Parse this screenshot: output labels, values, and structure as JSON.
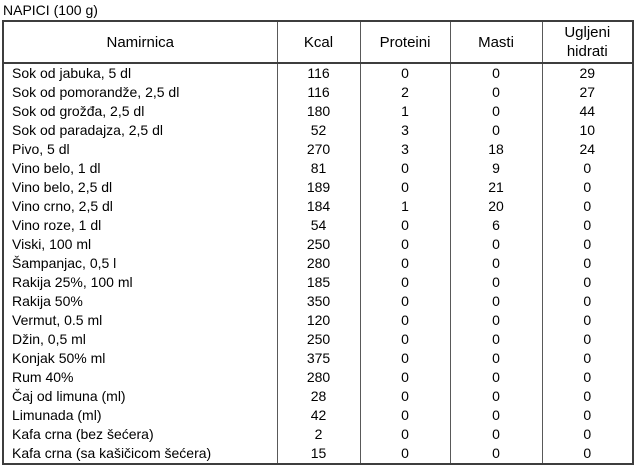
{
  "title": "NAPICI (100 g)",
  "table": {
    "headers": [
      "Namirnica",
      "Kcal",
      "Proteini",
      "Masti",
      "Ugljeni hidrati"
    ],
    "rows": [
      [
        "Sok od jabuka, 5 dl",
        "116",
        "0",
        "0",
        "29"
      ],
      [
        "Sok od pomorandže, 2,5 dl",
        "116",
        "2",
        "0",
        "27"
      ],
      [
        "Sok od grožđa, 2,5 dl",
        "180",
        "1",
        "0",
        "44"
      ],
      [
        "Sok od paradajza, 2,5 dl",
        "52",
        "3",
        "0",
        "10"
      ],
      [
        "Pivo, 5 dl",
        "270",
        "3",
        "18",
        "24"
      ],
      [
        "Vino belo, 1 dl",
        "81",
        "0",
        "9",
        "0"
      ],
      [
        "Vino belo, 2,5 dl",
        "189",
        "0",
        "21",
        "0"
      ],
      [
        "Vino crno, 2,5 dl",
        "184",
        "1",
        "20",
        "0"
      ],
      [
        "Vino roze, 1 dl",
        "54",
        "0",
        "6",
        "0"
      ],
      [
        "Viski, 100 ml",
        "250",
        "0",
        "0",
        "0"
      ],
      [
        "Šampanjac, 0,5 l",
        "280",
        "0",
        "0",
        "0"
      ],
      [
        "Rakija 25%, 100 ml",
        "185",
        "0",
        "0",
        "0"
      ],
      [
        "Rakija 50%",
        "350",
        "0",
        "0",
        "0"
      ],
      [
        "Vermut, 0.5 ml",
        "120",
        "0",
        "0",
        "0"
      ],
      [
        "Džin, 0,5 ml",
        "250",
        "0",
        "0",
        "0"
      ],
      [
        "Konjak 50% ml",
        "375",
        "0",
        "0",
        "0"
      ],
      [
        "Rum 40%",
        "280",
        "0",
        "0",
        "0"
      ],
      [
        "Čaj od limuna (ml)",
        "28",
        "0",
        "0",
        "0"
      ],
      [
        "Limunada (ml)",
        "42",
        "0",
        "0",
        "0"
      ],
      [
        "Kafa crna (bez šećera)",
        "2",
        "0",
        "0",
        "0"
      ],
      [
        "Kafa crna (sa kašičicom šećera)",
        "15",
        "0",
        "0",
        "0"
      ]
    ]
  }
}
